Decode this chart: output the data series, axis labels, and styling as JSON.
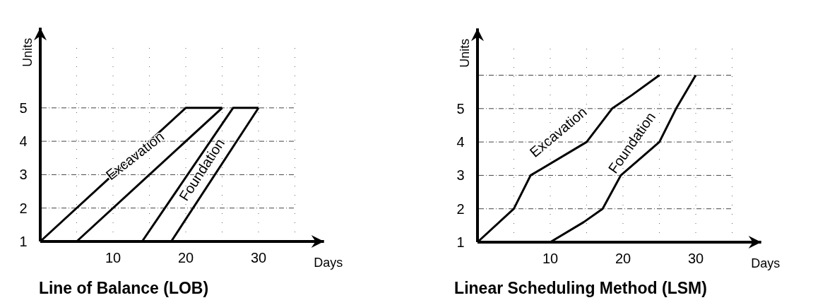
{
  "chart_data": [
    {
      "type": "line",
      "title": "Line of Balance (LOB)",
      "xlabel": "Days",
      "ylabel": "Units",
      "xlim": [
        0,
        39
      ],
      "ylim": [
        1,
        7.4
      ],
      "xticks": [
        {
          "value": 5,
          "label": null
        },
        10,
        {
          "value": 15,
          "label": null
        },
        20,
        {
          "value": 25,
          "label": null
        },
        30,
        {
          "value": 35,
          "label": null
        }
      ],
      "yticks": [
        1,
        2,
        3,
        4,
        5
      ],
      "grid": true,
      "legend": false,
      "marker": "none",
      "line_style": "solid",
      "series": [
        {
          "name": "Excavation",
          "color": "#000000",
          "x": [
            0,
            20,
            25
          ],
          "values": [
            1,
            5,
            5
          ]
        },
        {
          "color": "#000000",
          "x": [
            5,
            25
          ],
          "values": [
            1,
            5
          ]
        },
        {
          "name": "Foundation",
          "color": "#000000",
          "x": [
            14,
            26.5,
            30
          ],
          "values": [
            1,
            5,
            5
          ]
        },
        {
          "color": "#000000",
          "x": [
            18,
            30
          ],
          "values": [
            1,
            5
          ]
        }
      ]
    },
    {
      "type": "line",
      "title": "Linear Scheduling Method (LSM)",
      "xlabel": "Days",
      "ylabel": "Units",
      "xlim": [
        0,
        39
      ],
      "ylim": [
        1,
        7.4
      ],
      "xticks": [
        {
          "value": 5,
          "label": null
        },
        10,
        {
          "value": 15,
          "label": null
        },
        20,
        {
          "value": 25,
          "label": null
        },
        30,
        {
          "value": 35,
          "label": null
        }
      ],
      "yticks": [
        1,
        2,
        3,
        4,
        5,
        {
          "value": 6,
          "label": null
        }
      ],
      "grid": true,
      "legend": false,
      "marker": "none",
      "line_style": "solid",
      "series": [
        {
          "name": "Excavation",
          "color": "#000000",
          "x": [
            0,
            5,
            7.3,
            15,
            18.5,
            21.2,
            25
          ],
          "values": [
            1,
            2,
            3,
            4,
            5,
            5.4,
            6
          ]
        },
        {
          "name": "Foundation",
          "color": "#000000",
          "x": [
            10,
            14.6,
            17.2,
            19.7,
            25,
            27.3,
            30
          ],
          "values": [
            1,
            1.6,
            2,
            3,
            4,
            5,
            6
          ]
        }
      ]
    }
  ]
}
